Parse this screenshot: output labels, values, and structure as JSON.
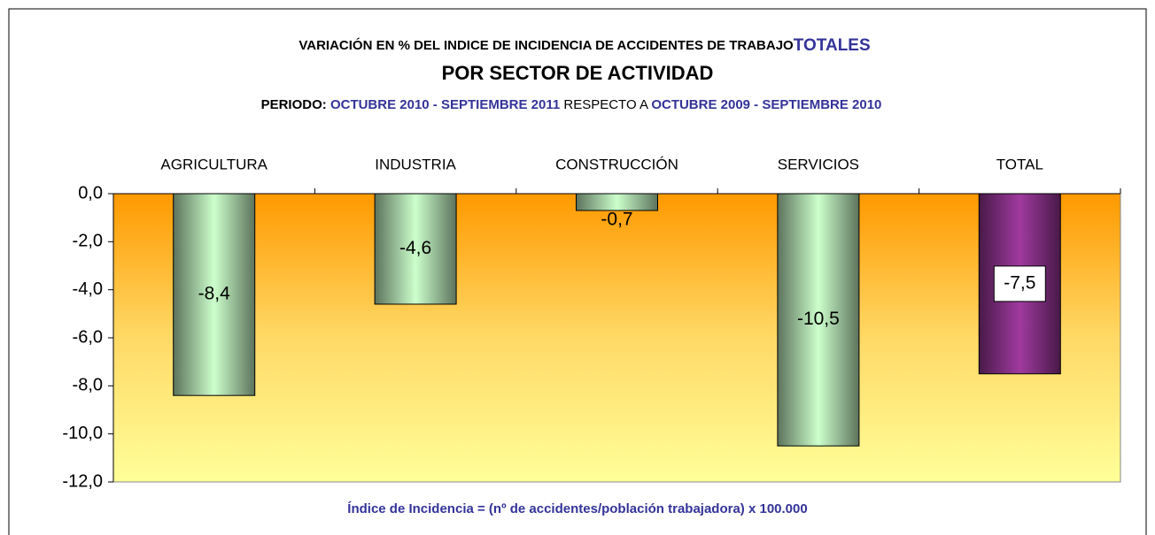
{
  "chart_data": {
    "type": "bar",
    "title": "VARIACIÓN EN % DEL INDICE DE INCIDENCIA DE ACCIDENTES DE TRABAJO",
    "title_highlight": "TOTALES",
    "subtitle": "POR SECTOR DE ACTIVIDAD",
    "period_label": "PERIODO:",
    "period": "OCTUBRE 2010 - SEPTIEMBRE 2011",
    "relative_to": "RESPECTO A",
    "base_period": "OCTUBRE 2009 - SEPTIEMBRE 2010",
    "note": "Índice de Incidencia = (nº de accidentes/población trabajadora) x 100.000",
    "categories": [
      "AGRICULTURA",
      "INDUSTRIA",
      "CONSTRUCCIÓN",
      "SERVICIOS",
      "TOTAL"
    ],
    "values": [
      -8.4,
      -4.6,
      -0.7,
      -10.5,
      -7.5
    ],
    "value_labels": [
      "-8,4",
      "-4,6",
      "-0,7",
      "-10,5",
      "-7,5"
    ],
    "colors": [
      "#ccffcc",
      "#ccffcc",
      "#ccffcc",
      "#ccffcc",
      "#a03aa0"
    ],
    "ylim": [
      -12,
      0
    ],
    "yticks": [
      {
        "value": 0,
        "label": "0,0"
      },
      {
        "value": -2,
        "label": "-2,0"
      },
      {
        "value": -4,
        "label": "-4,0"
      },
      {
        "value": -6,
        "label": "-6,0"
      },
      {
        "value": -8,
        "label": "-8,0"
      },
      {
        "value": -10,
        "label": "-10,0"
      },
      {
        "value": -12,
        "label": "-12,0"
      }
    ]
  }
}
